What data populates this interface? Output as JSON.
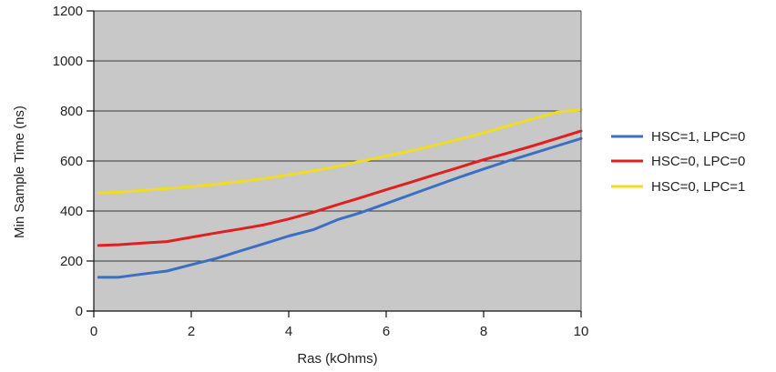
{
  "chart_data": {
    "type": "line",
    "title": "",
    "xlabel": "Ras (kOhms)",
    "ylabel": "Min Sample Time (ns)",
    "xlim": [
      0,
      10
    ],
    "ylim": [
      0,
      1200
    ],
    "xticks": [
      0,
      2,
      4,
      6,
      8,
      10
    ],
    "yticks": [
      0,
      200,
      400,
      600,
      800,
      1000,
      1200
    ],
    "grid": "horizontal",
    "plot_background": "#c8c8c8",
    "legend_position": "right",
    "series": [
      {
        "name": "HSC=1, LPC=0",
        "color": "#3a6fc4",
        "x": [
          0.1,
          0.5,
          1.0,
          1.5,
          2.0,
          2.5,
          3.0,
          3.5,
          4.0,
          4.5,
          5.0,
          5.5,
          6.0,
          6.5,
          7.0,
          7.5,
          8.0,
          8.5,
          9.0,
          9.5,
          10.0
        ],
        "y": [
          135,
          135,
          148,
          160,
          185,
          210,
          240,
          270,
          300,
          325,
          365,
          395,
          430,
          465,
          500,
          535,
          568,
          600,
          630,
          660,
          690
        ]
      },
      {
        "name": "HSC=0, LPC=0",
        "color": "#e02020",
        "x": [
          0.1,
          0.5,
          1.0,
          1.5,
          2.0,
          2.5,
          3.0,
          3.5,
          4.0,
          4.5,
          5.0,
          5.5,
          6.0,
          6.5,
          7.0,
          7.5,
          8.0,
          8.5,
          9.0,
          9.5,
          10.0
        ],
        "y": [
          262,
          265,
          272,
          278,
          295,
          312,
          328,
          345,
          368,
          395,
          425,
          455,
          485,
          515,
          545,
          575,
          605,
          632,
          660,
          690,
          720
        ]
      },
      {
        "name": "HSC=0, LPC=1",
        "color": "#f0dc20",
        "x": [
          0.1,
          0.5,
          1.0,
          1.5,
          2.0,
          2.5,
          3.0,
          3.5,
          4.0,
          4.5,
          5.0,
          5.5,
          6.0,
          6.5,
          7.0,
          7.5,
          8.0,
          8.5,
          9.0,
          9.5,
          10.0
        ],
        "y": [
          472,
          475,
          482,
          490,
          498,
          507,
          518,
          530,
          545,
          560,
          578,
          600,
          620,
          640,
          663,
          687,
          713,
          740,
          768,
          795,
          805
        ]
      }
    ]
  }
}
